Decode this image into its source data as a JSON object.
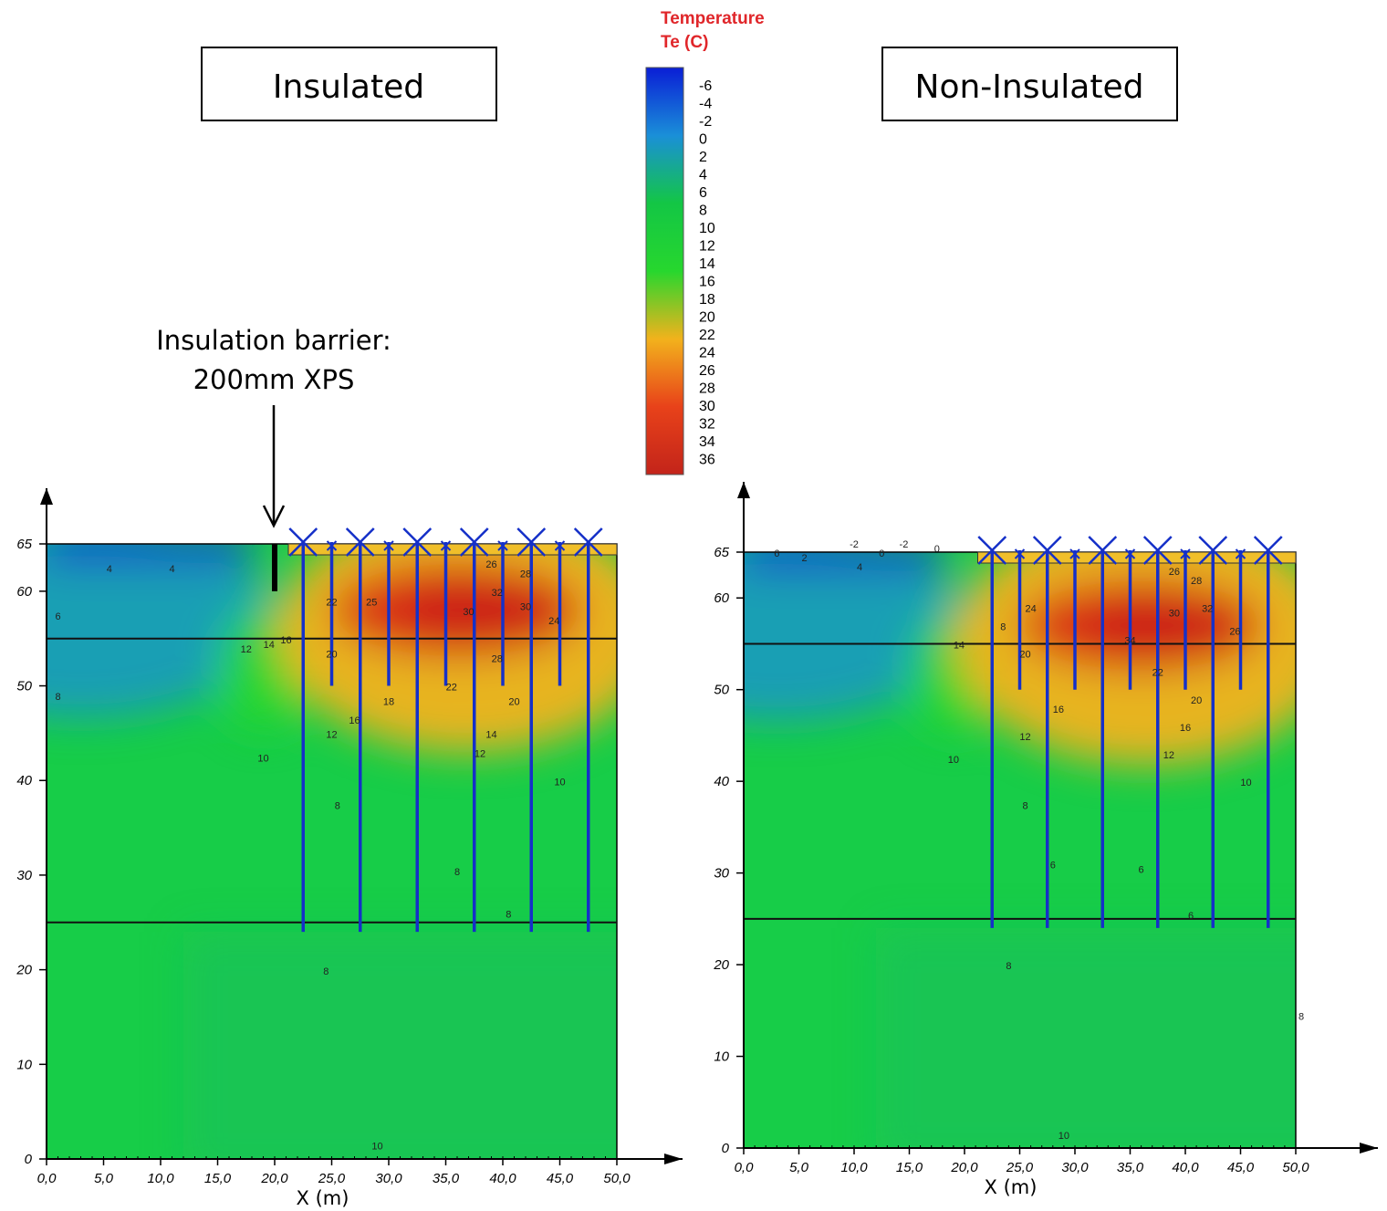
{
  "colorbar": {
    "title_line1": "Temperature",
    "title_line2": "Te (C)",
    "ticks": [
      "-6",
      "-4",
      "-2",
      "0",
      "2",
      "4",
      "6",
      "8",
      "10",
      "12",
      "14",
      "16",
      "18",
      "20",
      "22",
      "24",
      "26",
      "28",
      "30",
      "32",
      "34",
      "36"
    ]
  },
  "annotation": {
    "line1": "Insulation barrier:",
    "line2": "200mm XPS"
  },
  "colors": {
    "cold": "#0a1ed6",
    "cool": "#1a8fd8",
    "mid": "#13c645",
    "background_field": "#17cd48",
    "warm": "#f2b21c",
    "hot": "#d92a16",
    "pipes": "#1530c8",
    "colorbar_stops": [
      "#0a1ed6",
      "#1a8fd8",
      "#13c645",
      "#27d72e",
      "#f2b21c",
      "#e8421a",
      "#c3241a"
    ]
  },
  "chart_data": [
    {
      "type": "heatmap",
      "title": "Insulated",
      "xlabel": "X (m)",
      "ylabel": "",
      "xlim": [
        0,
        50
      ],
      "ylim": [
        0,
        65
      ],
      "xticks": [
        "0,0",
        "5,0",
        "10,0",
        "15,0",
        "20,0",
        "25,0",
        "30,0",
        "35,0",
        "40,0",
        "45,0",
        "50,0"
      ],
      "yticks": [
        "0",
        "10",
        "20",
        "30",
        "40",
        "50",
        "60",
        "65"
      ],
      "layer_boundaries_y": [
        55,
        25
      ],
      "insulation_barrier": {
        "x": 20,
        "y_top": 65,
        "y_bottom": 60
      },
      "pipes": [
        {
          "x": 22.5,
          "y_bottom": 24
        },
        {
          "x": 25,
          "y_bottom": 50
        },
        {
          "x": 27.5,
          "y_bottom": 24
        },
        {
          "x": 30,
          "y_bottom": 50
        },
        {
          "x": 32.5,
          "y_bottom": 24
        },
        {
          "x": 35,
          "y_bottom": 50
        },
        {
          "x": 37.5,
          "y_bottom": 24
        },
        {
          "x": 40,
          "y_bottom": 50
        },
        {
          "x": 42.5,
          "y_bottom": 24
        },
        {
          "x": 45,
          "y_bottom": 50
        },
        {
          "x": 47.5,
          "y_bottom": 24
        }
      ],
      "hot_zone": {
        "x_range": [
          22,
          50
        ],
        "y_range": [
          46,
          65
        ],
        "core_x": 36,
        "core_y": 58
      },
      "contour_labels": [
        {
          "t": "4",
          "x": 5.5,
          "y": 62
        },
        {
          "t": "4",
          "x": 11,
          "y": 62
        },
        {
          "t": "6",
          "x": 1,
          "y": 57
        },
        {
          "t": "12",
          "x": 17.5,
          "y": 53.5
        },
        {
          "t": "14",
          "x": 19.5,
          "y": 54
        },
        {
          "t": "16",
          "x": 21,
          "y": 54.5
        },
        {
          "t": "22",
          "x": 25,
          "y": 58.5
        },
        {
          "t": "25",
          "x": 28.5,
          "y": 58.5
        },
        {
          "t": "20",
          "x": 25,
          "y": 53
        },
        {
          "t": "26",
          "x": 39,
          "y": 62.5
        },
        {
          "t": "28",
          "x": 42,
          "y": 61.5
        },
        {
          "t": "30",
          "x": 37,
          "y": 57.5
        },
        {
          "t": "30",
          "x": 42,
          "y": 58
        },
        {
          "t": "32",
          "x": 39.5,
          "y": 59.5
        },
        {
          "t": "24",
          "x": 44.5,
          "y": 56.5
        },
        {
          "t": "28",
          "x": 39.5,
          "y": 52.5
        },
        {
          "t": "22",
          "x": 35.5,
          "y": 49.5
        },
        {
          "t": "20",
          "x": 41,
          "y": 48
        },
        {
          "t": "18",
          "x": 30,
          "y": 48
        },
        {
          "t": "16",
          "x": 27,
          "y": 46
        },
        {
          "t": "14",
          "x": 39,
          "y": 44.5
        },
        {
          "t": "12",
          "x": 25,
          "y": 44.5
        },
        {
          "t": "12",
          "x": 38,
          "y": 42.5
        },
        {
          "t": "10",
          "x": 19,
          "y": 42
        },
        {
          "t": "10",
          "x": 45,
          "y": 39.5
        },
        {
          "t": "8",
          "x": 25.5,
          "y": 37
        },
        {
          "t": "8",
          "x": 1,
          "y": 48.5
        },
        {
          "t": "8",
          "x": 36,
          "y": 30
        },
        {
          "t": "8",
          "x": 40.5,
          "y": 25.5
        },
        {
          "t": "8",
          "x": 24.5,
          "y": 19.5
        },
        {
          "t": "10",
          "x": 29,
          "y": 1
        }
      ]
    },
    {
      "type": "heatmap",
      "title": "Non-Insulated",
      "xlabel": "X (m)",
      "ylabel": "",
      "xlim": [
        0,
        50
      ],
      "ylim": [
        0,
        65
      ],
      "xticks": [
        "0,0",
        "5,0",
        "10,0",
        "15,0",
        "20,0",
        "25,0",
        "30,0",
        "35,0",
        "40,0",
        "45,0",
        "50,0"
      ],
      "yticks": [
        "0",
        "10",
        "20",
        "30",
        "40",
        "50",
        "60",
        "65"
      ],
      "layer_boundaries_y": [
        55,
        25
      ],
      "pipes": [
        {
          "x": 22.5,
          "y_bottom": 24
        },
        {
          "x": 25,
          "y_bottom": 50
        },
        {
          "x": 27.5,
          "y_bottom": 24
        },
        {
          "x": 30,
          "y_bottom": 50
        },
        {
          "x": 32.5,
          "y_bottom": 24
        },
        {
          "x": 35,
          "y_bottom": 50
        },
        {
          "x": 37.5,
          "y_bottom": 24
        },
        {
          "x": 40,
          "y_bottom": 50
        },
        {
          "x": 42.5,
          "y_bottom": 24
        },
        {
          "x": 45,
          "y_bottom": 50
        },
        {
          "x": 47.5,
          "y_bottom": 24
        }
      ],
      "hot_zone": {
        "x_range": [
          21,
          50
        ],
        "y_range": [
          45,
          65
        ],
        "core_x": 36,
        "core_y": 57
      },
      "contour_labels": [
        {
          "t": "6",
          "x": 3,
          "y": 64.5
        },
        {
          "t": "2",
          "x": 5.5,
          "y": 64
        },
        {
          "t": "-2",
          "x": 10,
          "y": 65.5
        },
        {
          "t": "0",
          "x": 12.5,
          "y": 64.5
        },
        {
          "t": "-2",
          "x": 14.5,
          "y": 65.5
        },
        {
          "t": "0",
          "x": 17.5,
          "y": 65
        },
        {
          "t": "4",
          "x": 10.5,
          "y": 63
        },
        {
          "t": "14",
          "x": 19.5,
          "y": 54.5
        },
        {
          "t": "8",
          "x": 23.5,
          "y": 56.5
        },
        {
          "t": "24",
          "x": 26,
          "y": 58.5
        },
        {
          "t": "20",
          "x": 25.5,
          "y": 53.5
        },
        {
          "t": "26",
          "x": 39,
          "y": 62.5
        },
        {
          "t": "28",
          "x": 41,
          "y": 61.5
        },
        {
          "t": "30",
          "x": 39,
          "y": 58
        },
        {
          "t": "32",
          "x": 42,
          "y": 58.5
        },
        {
          "t": "26",
          "x": 44.5,
          "y": 56
        },
        {
          "t": "34",
          "x": 35,
          "y": 55
        },
        {
          "t": "22",
          "x": 37.5,
          "y": 51.5
        },
        {
          "t": "20",
          "x": 41,
          "y": 48.5
        },
        {
          "t": "16",
          "x": 28.5,
          "y": 47.5
        },
        {
          "t": "16",
          "x": 40,
          "y": 45.5
        },
        {
          "t": "12",
          "x": 25.5,
          "y": 44.5
        },
        {
          "t": "12",
          "x": 38.5,
          "y": 42.5
        },
        {
          "t": "10",
          "x": 19,
          "y": 42
        },
        {
          "t": "10",
          "x": 45.5,
          "y": 39.5
        },
        {
          "t": "8",
          "x": 25.5,
          "y": 37
        },
        {
          "t": "6",
          "x": 28,
          "y": 30.5
        },
        {
          "t": "6",
          "x": 36,
          "y": 30
        },
        {
          "t": "6",
          "x": 40.5,
          "y": 25
        },
        {
          "t": "8",
          "x": 24,
          "y": 19.5
        },
        {
          "t": "10",
          "x": 29,
          "y": 1
        },
        {
          "t": "8",
          "x": 50.5,
          "y": 14
        }
      ]
    }
  ]
}
